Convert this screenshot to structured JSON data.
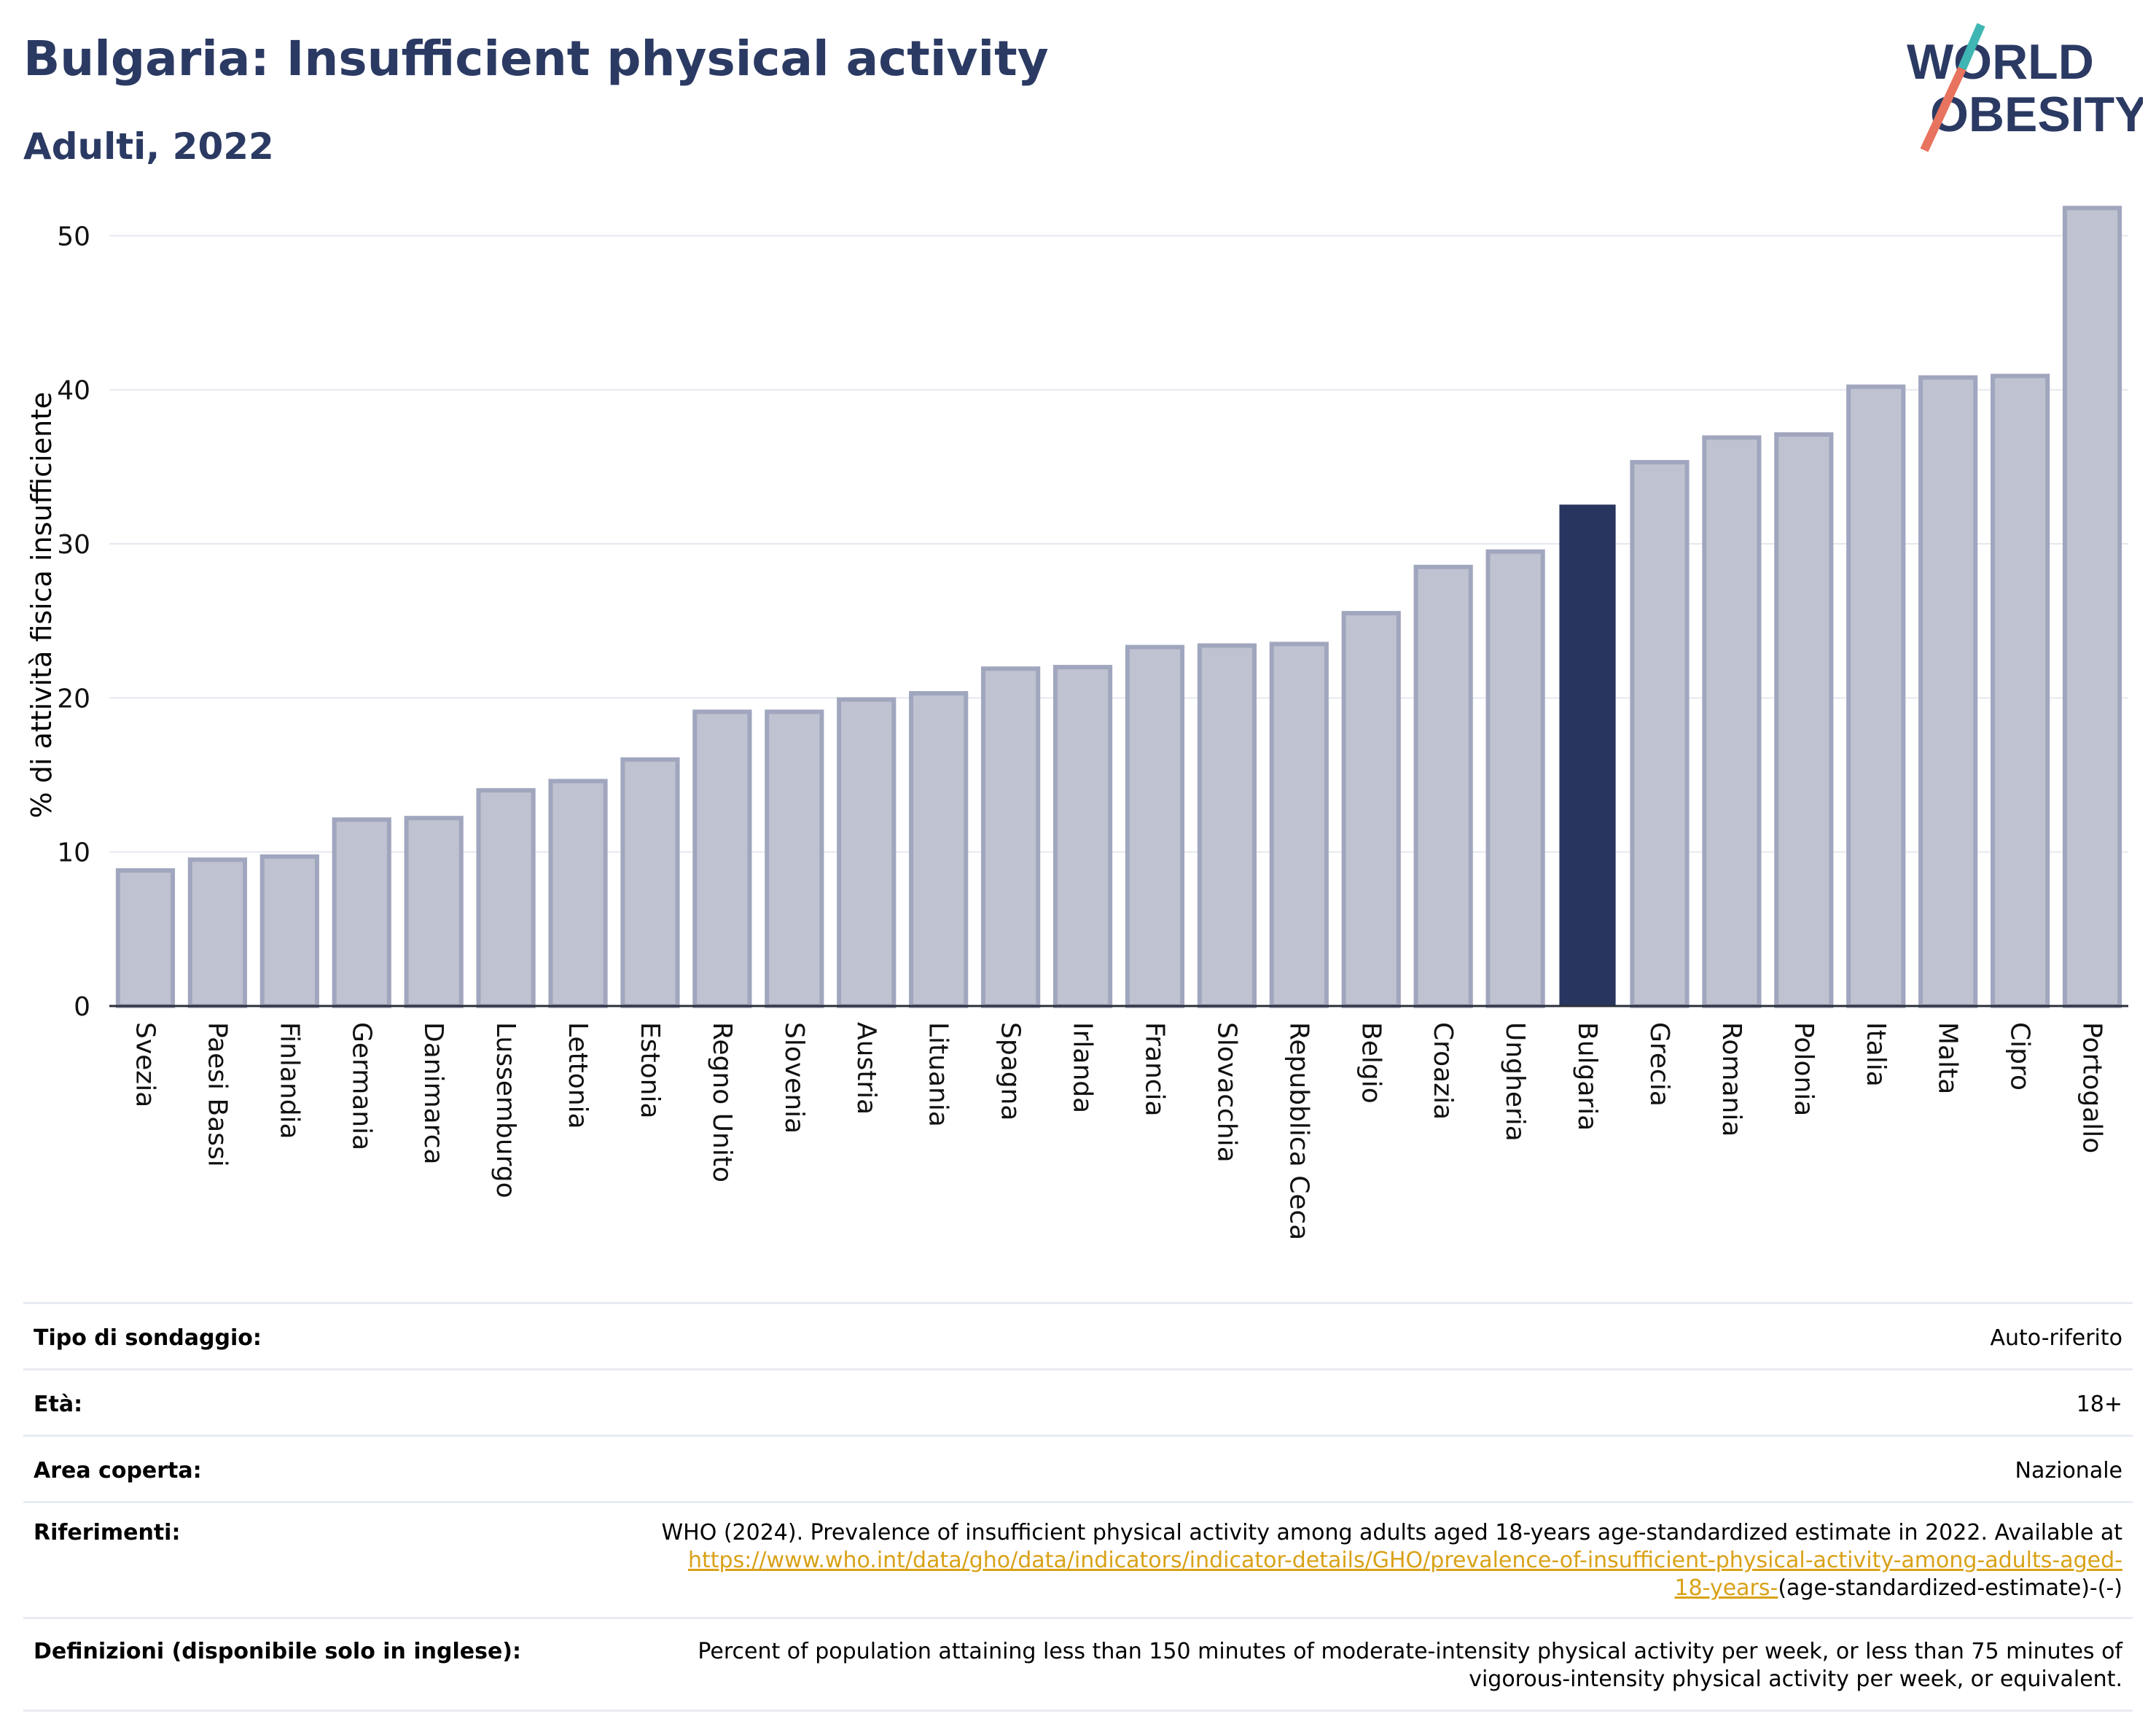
{
  "header": {
    "title": "Bulgaria: Insufficient physical activity",
    "subtitle": "Adulti, 2022",
    "logo_line1": "WORLD",
    "logo_line2": "OBESITY"
  },
  "chart_data": {
    "type": "bar",
    "ylabel": "% di attività fisica insufficiente",
    "ylim": [
      0,
      53
    ],
    "yticks": [
      0,
      10,
      20,
      30,
      40,
      50
    ],
    "grid": true,
    "highlight": "Bulgaria",
    "categories": [
      "Svezia",
      "Paesi Bassi",
      "Finlandia",
      "Germania",
      "Danimarca",
      "Lussemburgo",
      "Lettonia",
      "Estonia",
      "Regno Unito",
      "Slovenia",
      "Austria",
      "Lituania",
      "Spagna",
      "Irlanda",
      "Francia",
      "Slovacchia",
      "Repubblica Ceca",
      "Belgio",
      "Croazia",
      "Ungheria",
      "Bulgaria",
      "Grecia",
      "Romania",
      "Polonia",
      "Italia",
      "Malta",
      "Cipro",
      "Portogallo"
    ],
    "values": [
      8.8,
      9.5,
      9.7,
      12.1,
      12.2,
      14.0,
      14.6,
      16.0,
      19.1,
      19.1,
      19.9,
      20.3,
      21.9,
      22.0,
      23.3,
      23.4,
      23.5,
      25.5,
      28.5,
      29.5,
      32.5,
      35.3,
      36.9,
      37.1,
      40.2,
      40.8,
      40.9,
      51.8
    ]
  },
  "colors": {
    "bar": "#bfc2d0",
    "bar_border": "#a0a6bd",
    "highlight": "#28355e",
    "title": "#2b3a63",
    "logo_slash_top": "#3fb6b3",
    "logo_slash_bottom": "#e8735e",
    "link": "#d9a117"
  },
  "info": {
    "survey_label": "Tipo di sondaggio:",
    "survey_value": "Auto-riferito",
    "age_label": "Età:",
    "age_value": "18+",
    "area_label": "Area coperta:",
    "area_value": "Nazionale",
    "refs_label": "Riferimenti:",
    "refs_text": "WHO (2024). Prevalence of insufficient physical activity among adults aged 18-years age-standardized estimate in 2022. Available at",
    "refs_link_1": "https://www.who.int/data/gho/data/indicators/indicator-details/GHO/prevalence-of-insufficient-physical-activity-among-adults-aged-",
    "refs_link_2": "18-years-",
    "refs_tail": "(age-standardized-estimate)-(-)",
    "defs_label": "Definizioni (disponibile solo in inglese):",
    "defs_line1": "Percent of population attaining less than 150 minutes of moderate-intensity physical activity per week, or less than 75 minutes of",
    "defs_line2": "vigorous-intensity physical activity per week, or equivalent."
  }
}
